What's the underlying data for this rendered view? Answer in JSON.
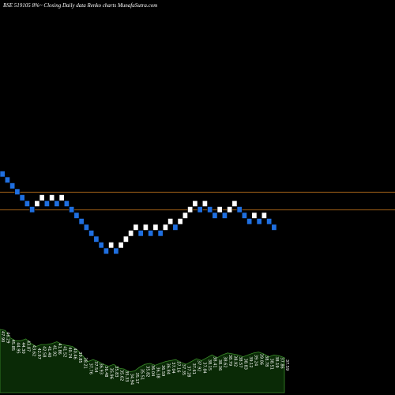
{
  "header": {
    "title": "BSE 519105 8%~   Closing Daily data  Renko  charts MunafaSutra.com"
  },
  "colors": {
    "background": "#000000",
    "up_brick": "#ffffff",
    "down_brick": "#1f6fe0",
    "brick_border": "#000000",
    "reference_line": "#c8781e",
    "volume_fill": "#0a2a06",
    "volume_stroke": "#3a8a2a",
    "label_text": "#ffffff"
  },
  "chart_data": [
    {
      "type": "renko",
      "title": "BSE 519105 8%~   Closing Daily data  Renko  charts MunafaSutra.com",
      "brick_size": 1,
      "grid": false,
      "reference_levels": [
        42.0,
        39.0
      ],
      "bricks": [
        {
          "dir": "down",
          "level": 45.0
        },
        {
          "dir": "down",
          "level": 44.0
        },
        {
          "dir": "down",
          "level": 43.0
        },
        {
          "dir": "down",
          "level": 42.0
        },
        {
          "dir": "down",
          "level": 41.0
        },
        {
          "dir": "down",
          "level": 40.0
        },
        {
          "dir": "down",
          "level": 39.0
        },
        {
          "dir": "up",
          "level": 40.0
        },
        {
          "dir": "up",
          "level": 41.0
        },
        {
          "dir": "down",
          "level": 40.0
        },
        {
          "dir": "up",
          "level": 41.0
        },
        {
          "dir": "down",
          "level": 40.0
        },
        {
          "dir": "up",
          "level": 41.0
        },
        {
          "dir": "down",
          "level": 40.0
        },
        {
          "dir": "down",
          "level": 39.0
        },
        {
          "dir": "down",
          "level": 38.0
        },
        {
          "dir": "down",
          "level": 37.0
        },
        {
          "dir": "down",
          "level": 36.0
        },
        {
          "dir": "down",
          "level": 35.0
        },
        {
          "dir": "down",
          "level": 34.0
        },
        {
          "dir": "down",
          "level": 33.0
        },
        {
          "dir": "down",
          "level": 32.0
        },
        {
          "dir": "up",
          "level": 33.0
        },
        {
          "dir": "down",
          "level": 32.0
        },
        {
          "dir": "up",
          "level": 33.0
        },
        {
          "dir": "up",
          "level": 34.0
        },
        {
          "dir": "up",
          "level": 35.0
        },
        {
          "dir": "up",
          "level": 36.0
        },
        {
          "dir": "down",
          "level": 35.0
        },
        {
          "dir": "up",
          "level": 36.0
        },
        {
          "dir": "down",
          "level": 35.0
        },
        {
          "dir": "up",
          "level": 36.0
        },
        {
          "dir": "down",
          "level": 35.0
        },
        {
          "dir": "up",
          "level": 36.0
        },
        {
          "dir": "up",
          "level": 37.0
        },
        {
          "dir": "down",
          "level": 36.0
        },
        {
          "dir": "up",
          "level": 37.0
        },
        {
          "dir": "up",
          "level": 38.0
        },
        {
          "dir": "up",
          "level": 39.0
        },
        {
          "dir": "up",
          "level": 40.0
        },
        {
          "dir": "down",
          "level": 39.0
        },
        {
          "dir": "up",
          "level": 40.0
        },
        {
          "dir": "down",
          "level": 39.0
        },
        {
          "dir": "down",
          "level": 38.0
        },
        {
          "dir": "up",
          "level": 39.0
        },
        {
          "dir": "down",
          "level": 38.0
        },
        {
          "dir": "up",
          "level": 39.0
        },
        {
          "dir": "up",
          "level": 40.0
        },
        {
          "dir": "down",
          "level": 39.0
        },
        {
          "dir": "down",
          "level": 38.0
        },
        {
          "dir": "down",
          "level": 37.0
        },
        {
          "dir": "up",
          "level": 38.0
        },
        {
          "dir": "down",
          "level": 37.0
        },
        {
          "dir": "up",
          "level": 38.0
        },
        {
          "dir": "down",
          "level": 37.0
        },
        {
          "dir": "down",
          "level": 36.0
        }
      ]
    },
    {
      "type": "area",
      "title": "",
      "values": [
        67,
        66,
        58,
        55,
        55,
        57,
        52,
        49,
        51,
        51,
        52,
        54,
        51,
        50,
        49,
        45,
        39,
        33,
        35,
        33,
        30,
        28,
        30,
        26,
        25,
        22,
        23,
        27,
        30,
        31,
        29,
        31,
        33,
        34,
        35,
        32,
        30,
        33,
        36,
        34,
        37,
        40,
        37,
        40,
        42,
        41,
        40,
        38,
        40,
        42,
        43,
        41,
        38,
        40,
        39,
        37
      ],
      "labels": [
        "47.90",
        "46.29",
        "45.85",
        "44.95",
        "44.30",
        "43.87",
        "43.62",
        "42.97",
        "42.58",
        "41.40",
        "41.92",
        "41.86",
        "41.52",
        "40.74",
        "40.46",
        "39.85",
        "38.21",
        "37.76",
        "37.54",
        "36.93",
        "36.48",
        "35.96",
        "35.83",
        "35.62",
        "35.33",
        "34.94",
        "35.17",
        "35.51",
        "35.82",
        "36.04",
        "36.38",
        "36.59",
        "36.84",
        "37.04",
        "37.16",
        "37.35",
        "37.28",
        "37.61",
        "37.92",
        "37.84",
        "38.15",
        "38.41",
        "38.36",
        "38.62",
        "38.79",
        "38.92",
        "38.57",
        "38.83",
        "39.12",
        "39.24",
        "39.06",
        "38.78",
        "38.51",
        "38.19",
        "37.86",
        "37.59"
      ],
      "grid": false
    }
  ]
}
